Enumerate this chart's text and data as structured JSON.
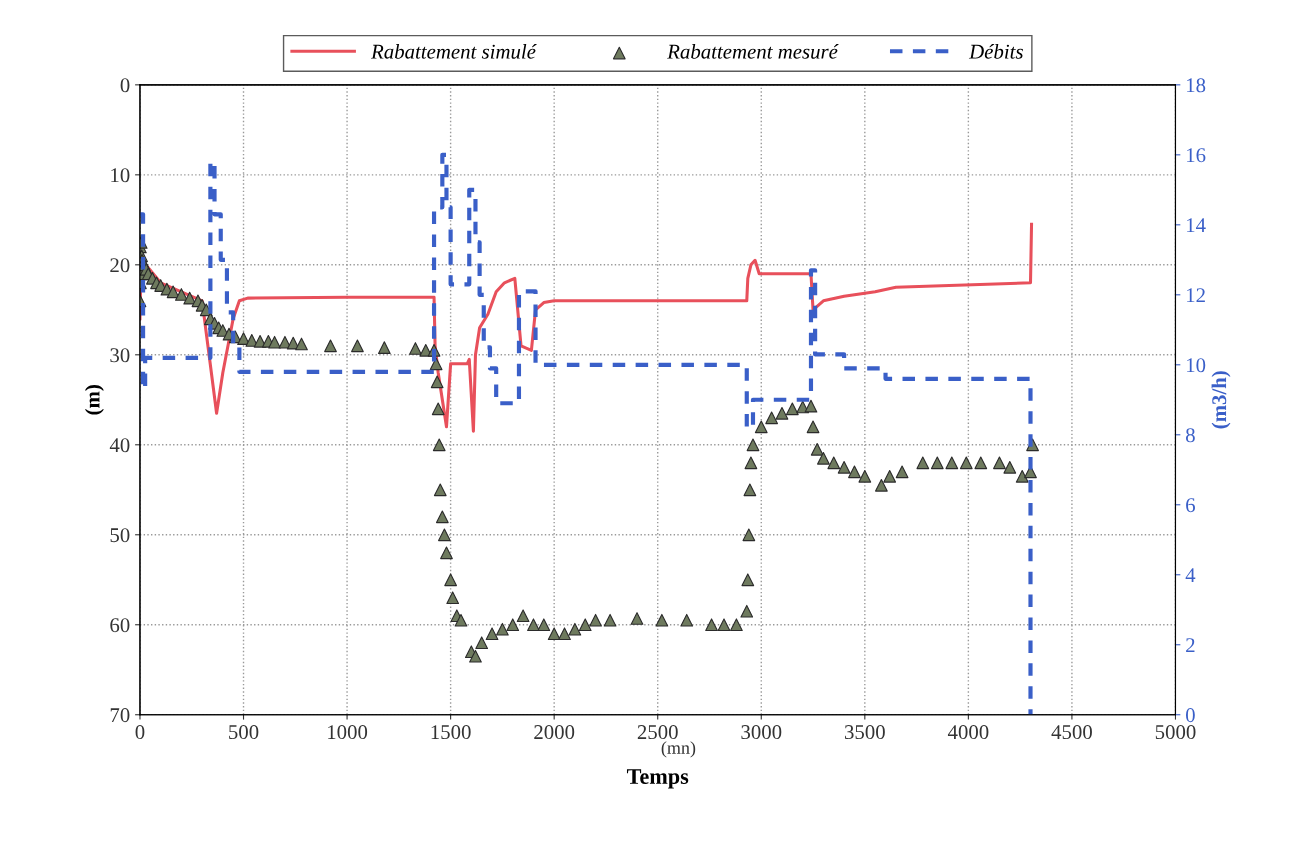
{
  "chart_data": {
    "type": "line",
    "xlabel": "Temps",
    "ylabel": "(m)",
    "y2label": "(m3/h)",
    "annotations": [
      "(mn)"
    ],
    "xlim": [
      0,
      5000
    ],
    "xticks": [
      0,
      500,
      1000,
      1500,
      2000,
      2500,
      3000,
      3500,
      4000,
      4500,
      5000
    ],
    "ylim": [
      70,
      0
    ],
    "yticks": [
      0,
      10,
      20,
      30,
      40,
      50,
      60,
      70
    ],
    "y2lim": [
      0,
      18
    ],
    "y2ticks": [
      0,
      2,
      4,
      6,
      8,
      10,
      12,
      14,
      16,
      18
    ],
    "grid": true,
    "legend": "top",
    "series": [
      {
        "name": "Rabattement simulé",
        "color": "#e8505b",
        "line_style": "solid",
        "axis": "y",
        "x": [
          0,
          5,
          10,
          100,
          200,
          300,
          370,
          400,
          450,
          480,
          520,
          1000,
          1420,
          1425,
          1440,
          1480,
          1500,
          1580,
          1590,
          1610,
          1620,
          1640,
          1680,
          1720,
          1760,
          1810,
          1840,
          1890,
          1910,
          1950,
          2000,
          2930,
          2935,
          2950,
          2970,
          2990,
          3240,
          3250,
          3300,
          3400,
          3550,
          3650,
          4300,
          4305
        ],
        "values": [
          26,
          20,
          19.5,
          22,
          23,
          24,
          36.5,
          32,
          26,
          24,
          23.7,
          23.6,
          23.6,
          29,
          32,
          38,
          31,
          31,
          30.5,
          38.5,
          30,
          27,
          25.5,
          23,
          22,
          21.5,
          29,
          29.5,
          25,
          24.2,
          24,
          24,
          21.5,
          20,
          19.5,
          21,
          21,
          25,
          24,
          23.5,
          23,
          22.5,
          22,
          15.5
        ]
      },
      {
        "name": "Rabattement mesuré",
        "type": "scatter",
        "marker": "triangle",
        "color": "#6e7a5e",
        "axis": "y",
        "x": [
          0,
          2,
          2,
          4,
          6,
          8,
          10,
          15,
          20,
          30,
          40,
          60,
          80,
          100,
          130,
          160,
          200,
          240,
          280,
          300,
          320,
          340,
          360,
          380,
          400,
          430,
          460,
          500,
          540,
          580,
          620,
          650,
          700,
          740,
          780,
          920,
          1050,
          1180,
          1330,
          1380,
          1420,
          1430,
          1435,
          1440,
          1445,
          1450,
          1460,
          1470,
          1480,
          1500,
          1510,
          1530,
          1550,
          1600,
          1620,
          1650,
          1700,
          1750,
          1800,
          1850,
          1900,
          1950,
          2000,
          2050,
          2100,
          2150,
          2200,
          2270,
          2400,
          2520,
          2640,
          2760,
          2820,
          2880,
          2930,
          2935,
          2940,
          2945,
          2950,
          2960,
          3000,
          3050,
          3100,
          3150,
          3200,
          3240,
          3250,
          3270,
          3300,
          3350,
          3400,
          3450,
          3500,
          3580,
          3620,
          3680,
          3780,
          3850,
          3920,
          3990,
          4060,
          4150,
          4200,
          4260,
          4300,
          4310
        ],
        "values": [
          24,
          22,
          18,
          21,
          17.5,
          19,
          19.5,
          19.8,
          20,
          20.5,
          21,
          21.5,
          22,
          22.3,
          22.7,
          23,
          23.3,
          23.7,
          24,
          24.5,
          25,
          26,
          26.5,
          27,
          27.3,
          27.7,
          28,
          28.2,
          28.4,
          28.5,
          28.5,
          28.6,
          28.6,
          28.7,
          28.8,
          29,
          29,
          29.2,
          29.3,
          29.5,
          29.5,
          31,
          33,
          36,
          40,
          45,
          48,
          50,
          52,
          55,
          57,
          59,
          59.5,
          63,
          63.5,
          62,
          61,
          60.5,
          60,
          59,
          60,
          60,
          61,
          61,
          60.5,
          60,
          59.5,
          59.5,
          59.3,
          59.5,
          59.5,
          60,
          60,
          60,
          58.5,
          55,
          50,
          45,
          42,
          40,
          38,
          37,
          36.5,
          36,
          35.8,
          35.7,
          38,
          40.5,
          41.5,
          42,
          42.5,
          43,
          43.5,
          44.5,
          43.5,
          43,
          42,
          42,
          42,
          42,
          42,
          42,
          42.5,
          43.5,
          43,
          40
        ]
      },
      {
        "name": "Débits",
        "type": "step",
        "color": "#3a5fc8",
        "line_style": "dashed",
        "axis": "y2",
        "x": [
          0,
          15,
          25,
          340,
          360,
          390,
          420,
          450,
          480,
          1420,
          1460,
          1480,
          1500,
          1590,
          1620,
          1640,
          1660,
          1690,
          1720,
          1830,
          1910,
          2930,
          2960,
          3240,
          3260,
          3400,
          3600,
          4300,
          4310
        ],
        "values": [
          14.3,
          9.3,
          10.2,
          15.8,
          14.3,
          13,
          11.5,
          10.5,
          9.8,
          14.5,
          16,
          14.5,
          12.3,
          15,
          13.5,
          12,
          10.5,
          9.9,
          8.9,
          12.1,
          10,
          8.2,
          9,
          12.7,
          10.3,
          9.9,
          9.6,
          0,
          0
        ]
      }
    ]
  }
}
